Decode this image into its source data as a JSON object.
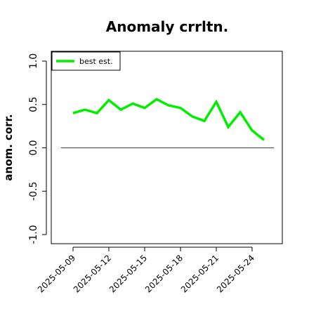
{
  "chart_data": {
    "type": "line",
    "title": "Anomaly crrltn.",
    "ylabel": "anom. corr.",
    "xlabel": "",
    "ylim": [
      -1.0,
      1.0
    ],
    "yticks": [
      "-1.0",
      "-0.5",
      "0.0",
      "0.5",
      "1.0"
    ],
    "xticks": [
      "2025-05-09",
      "2025-05-12",
      "2025-05-15",
      "2025-05-18",
      "2025-05-21",
      "2025-05-24"
    ],
    "x": [
      "2025-05-09",
      "2025-05-10",
      "2025-05-11",
      "2025-05-12",
      "2025-05-13",
      "2025-05-14",
      "2025-05-15",
      "2025-05-16",
      "2025-05-17",
      "2025-05-18",
      "2025-05-19",
      "2025-05-20",
      "2025-05-21",
      "2025-05-22",
      "2025-05-23",
      "2025-05-24"
    ],
    "series": [
      {
        "name": "best est.",
        "color": "#00ee00",
        "values": [
          0.4,
          0.44,
          0.4,
          0.55,
          0.44,
          0.51,
          0.46,
          0.56,
          0.49,
          0.46,
          0.36,
          0.31,
          0.53,
          0.24,
          0.41,
          0.2
        ]
      }
    ],
    "series_last_point": {
      "x": "2025-05-25",
      "y": 0.09
    },
    "reference_line": {
      "y": 0.0,
      "color": "#555555"
    },
    "legend": {
      "placement": "top-left"
    },
    "grid": false
  }
}
